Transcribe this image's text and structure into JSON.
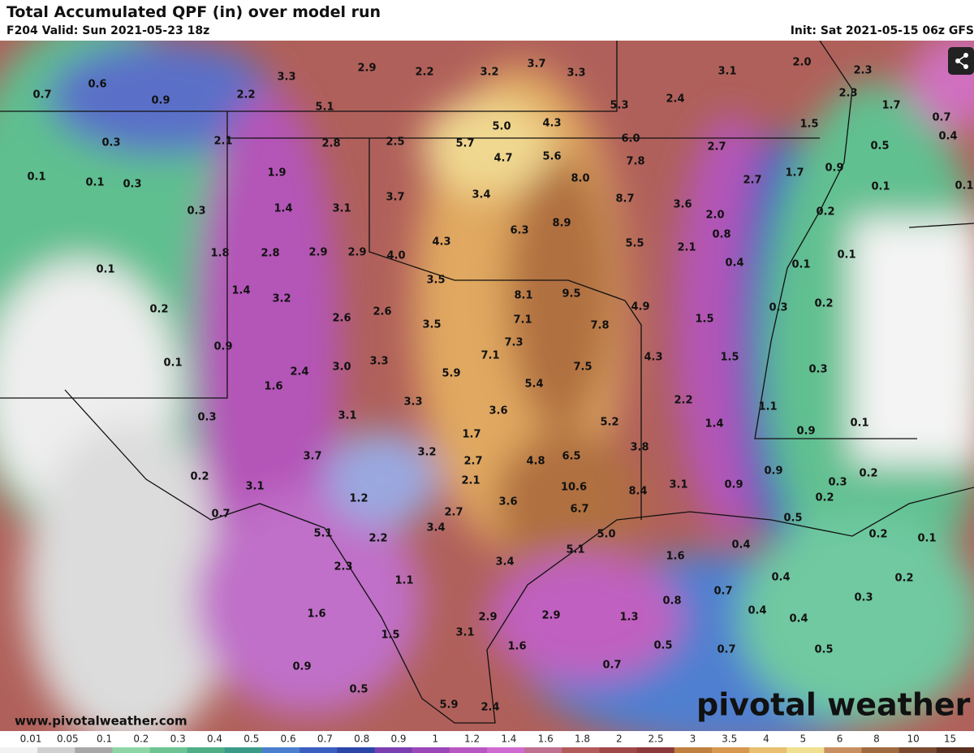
{
  "header": {
    "title": "Total Accumulated QPF (in) over model run",
    "valid": "F204 Valid: Sun 2021-05-23 18z",
    "init": "Init: Sat 2021-05-15 06z GFS"
  },
  "map": {
    "labels": [
      "0.6",
      "0.7",
      "0.9",
      "2.2",
      "3.3",
      "2.9",
      "2.2",
      "3.2",
      "3.7",
      "3.3",
      "3.1",
      "2.0",
      "2.3",
      "2.3",
      "1.7",
      "5.1",
      "5.3",
      "2.4",
      "0.7",
      "1.5",
      "0.4",
      "0.5",
      "0.3",
      "2.1",
      "2.8",
      "2.5",
      "5.7",
      "5.0",
      "4.3",
      "4.7",
      "5.6",
      "6.0",
      "7.8",
      "2.7",
      "1.7",
      "2.7",
      "0.9",
      "0.1",
      "0.1",
      "0.3",
      "1.9",
      "8.0",
      "0.1",
      "0.1",
      "3.7",
      "3.4",
      "8.7",
      "3.6",
      "2.0",
      "0.2",
      "0.3",
      "1.4",
      "3.1",
      "6.3",
      "8.9",
      "0.8",
      "4.3",
      "5.5",
      "2.1",
      "0.1",
      "1.8",
      "2.8",
      "2.9",
      "2.9",
      "4.0",
      "0.4",
      "0.1",
      "0.1",
      "3.5",
      "8.1",
      "9.5",
      "1.4",
      "3.2",
      "4.9",
      "0.3",
      "0.2",
      "0.2",
      "2.6",
      "2.6",
      "7.1",
      "1.5",
      "3.5",
      "7.8",
      "7.3",
      "0.9",
      "7.1",
      "4.3",
      "1.5",
      "0.1",
      "3.0",
      "3.3",
      "7.5",
      "0.3",
      "2.4",
      "5.9",
      "5.4",
      "1.6",
      "3.3",
      "2.2",
      "3.1",
      "3.6",
      "1.1",
      "0.3",
      "5.2",
      "1.4",
      "0.1",
      "0.9",
      "1.7",
      "3.2",
      "3.8",
      "3.7",
      "2.7",
      "4.8",
      "6.5",
      "0.9",
      "0.2",
      "0.2",
      "2.1",
      "3.1",
      "0.9",
      "0.3",
      "3.1",
      "10.6",
      "8.4",
      "0.2",
      "1.2",
      "3.6",
      "6.7",
      "0.7",
      "2.7",
      "0.5",
      "3.4",
      "5.1",
      "2.2",
      "0.2",
      "0.1",
      "5.0",
      "0.4",
      "5.1",
      "1.6",
      "3.4",
      "2.3",
      "0.4",
      "0.2",
      "1.1",
      "0.7",
      "0.3",
      "0.8",
      "0.4",
      "0.4",
      "1.6",
      "2.9",
      "2.9",
      "1.3",
      "3.1",
      "1.5",
      "1.6",
      "0.5",
      "0.7",
      "0.5",
      "0.7",
      "0.9",
      "0.5",
      "5.9",
      "2.4"
    ]
  },
  "footer": {
    "website": "www.pivotalweather.com",
    "brand": "pivotal weather"
  },
  "color_scale": {
    "labels": [
      "0.01",
      "0.05",
      "0.1",
      "0.2",
      "0.3",
      "0.4",
      "0.5",
      "0.6",
      "0.7",
      "0.8",
      "0.9",
      "1",
      "1.2",
      "1.4",
      "1.6",
      "1.8",
      "2",
      "2.5",
      "3",
      "3.5",
      "4",
      "5",
      "6",
      "8",
      "10",
      "15"
    ],
    "colors": [
      "#f2f2f2",
      "#d0d0d0",
      "#a8a8a8",
      "#8fd6a6",
      "#6cc493",
      "#4fae86",
      "#3b9a8a",
      "#4a7fd0",
      "#3a5fc0",
      "#2b45a8",
      "#7a3fb0",
      "#9a48b8",
      "#b957c2",
      "#d06ad0",
      "#c07090",
      "#b35a5a",
      "#a04848",
      "#8c3a3a",
      "#c08040",
      "#d89850",
      "#e8c070",
      "#f0e090",
      "#c89060",
      "#a06a40",
      "#7a4a30",
      "#5a3020"
    ]
  }
}
